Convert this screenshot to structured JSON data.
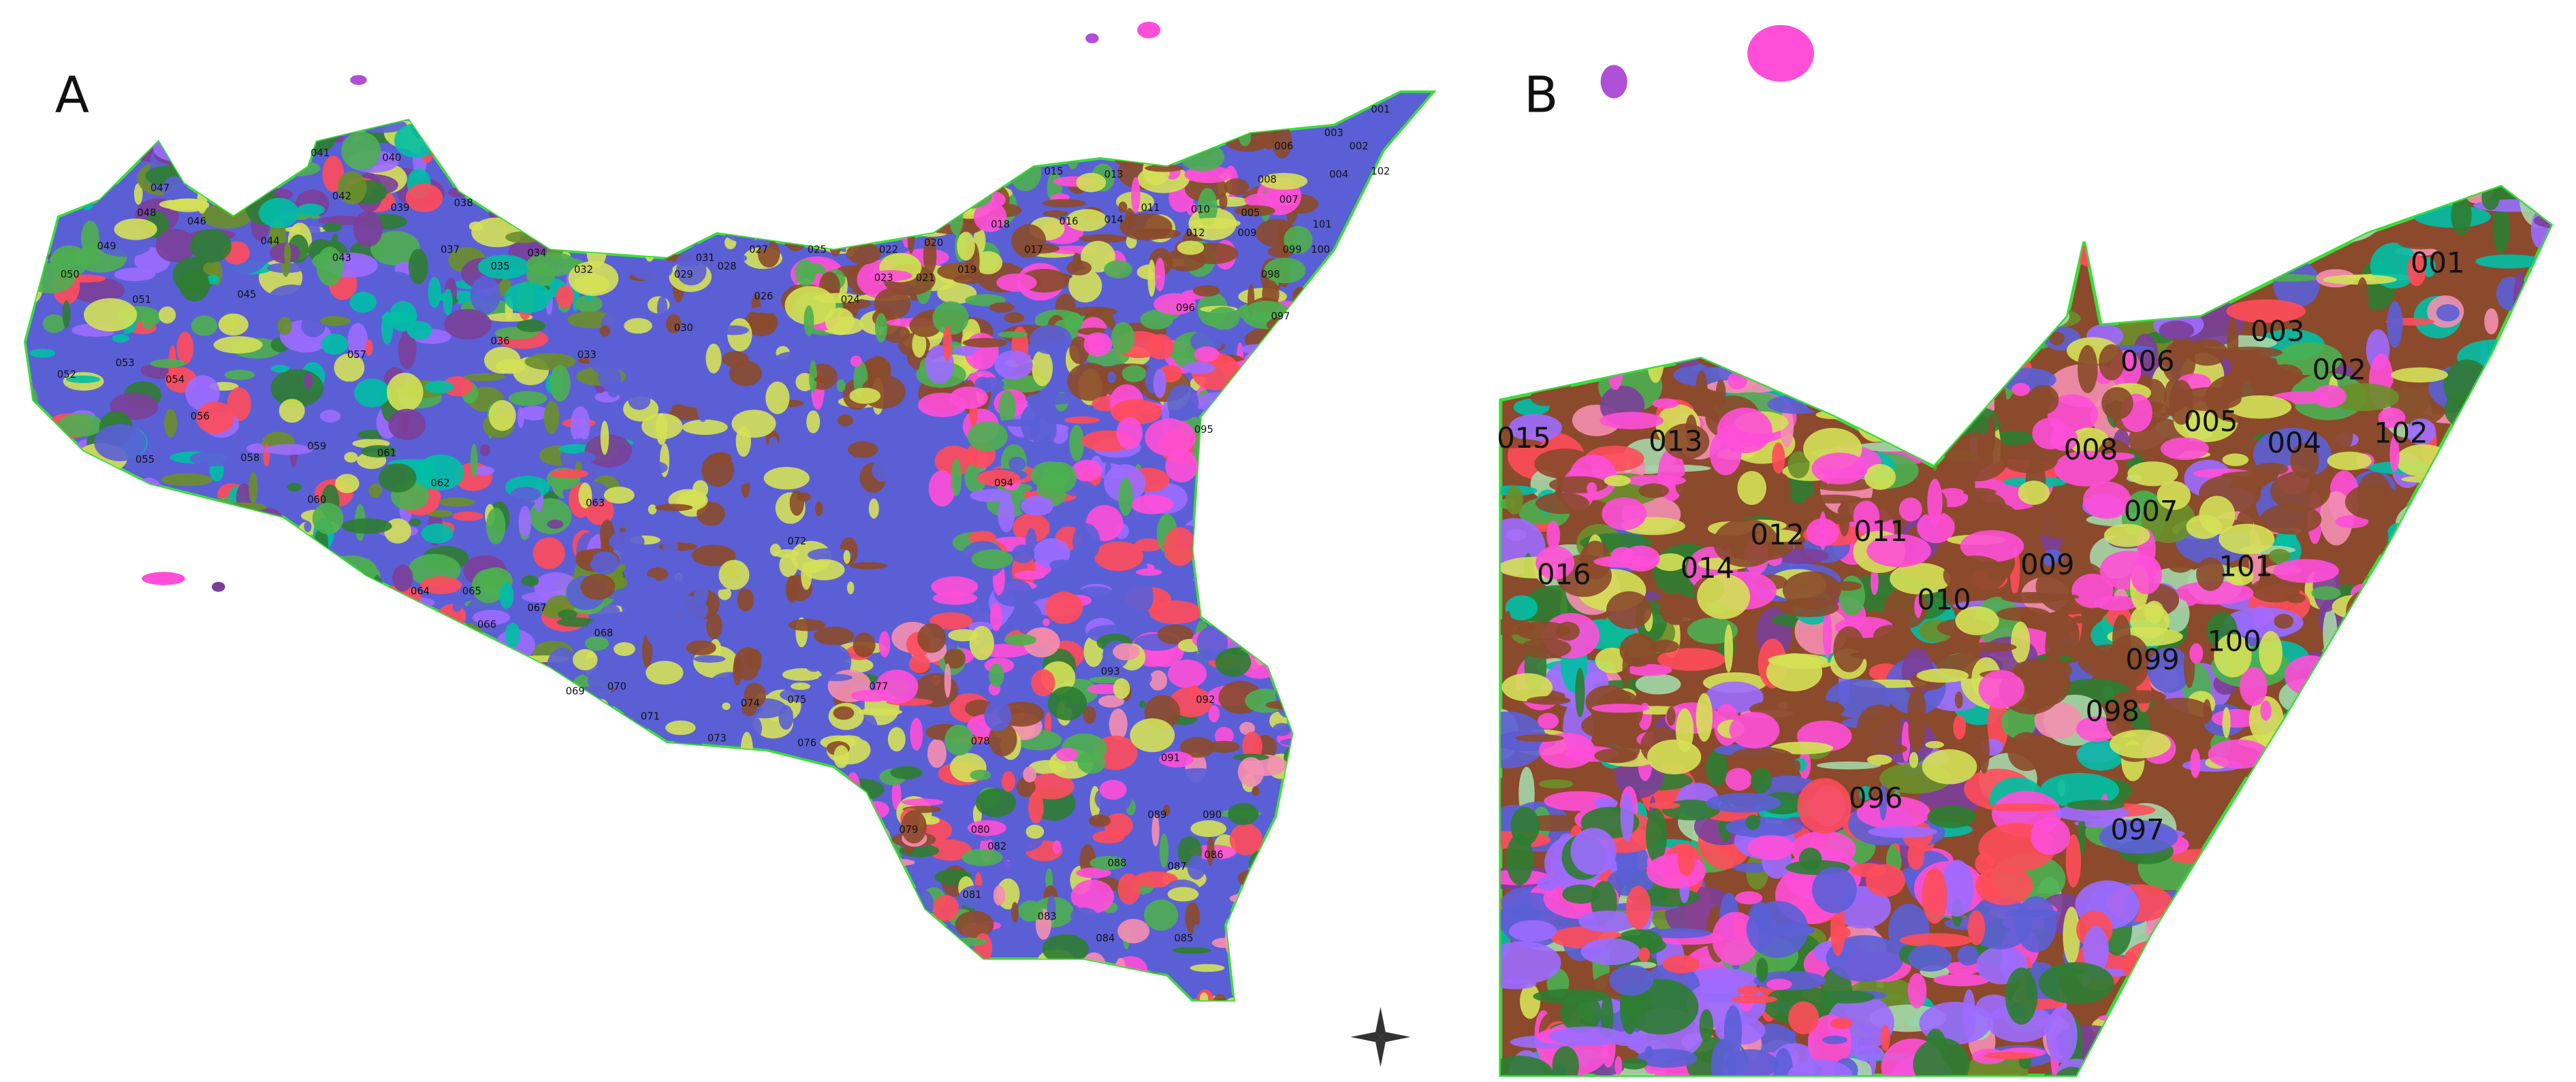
{
  "panels": [
    {
      "label": "A",
      "regions": [
        "001",
        "002",
        "003",
        "004",
        "005",
        "006",
        "007",
        "008",
        "009",
        "010",
        "011",
        "012",
        "013",
        "014",
        "015",
        "016",
        "017",
        "018",
        "019",
        "020",
        "021",
        "022",
        "023",
        "024",
        "025",
        "026",
        "027",
        "028",
        "029",
        "030",
        "031",
        "032",
        "033",
        "034",
        "035",
        "036",
        "037",
        "038",
        "039",
        "040",
        "041",
        "042",
        "043",
        "044",
        "045",
        "046",
        "047",
        "048",
        "049",
        "050",
        "051",
        "052",
        "053",
        "054",
        "055",
        "056",
        "057",
        "058",
        "059",
        "060",
        "061",
        "062",
        "063",
        "064",
        "065",
        "066",
        "067",
        "068",
        "069",
        "070",
        "071",
        "072",
        "073",
        "074",
        "075",
        "076",
        "077",
        "078",
        "079",
        "080",
        "081",
        "082",
        "083",
        "084",
        "085",
        "086",
        "087",
        "088",
        "089",
        "090",
        "091",
        "092",
        "093",
        "094",
        "095",
        "096",
        "097",
        "098",
        "099",
        "100",
        "101",
        "102"
      ]
    },
    {
      "label": "B",
      "regions": [
        "001",
        "003",
        "002",
        "006",
        "005",
        "004",
        "102",
        "008",
        "015",
        "013",
        "007",
        "012",
        "011",
        "016",
        "014",
        "009",
        "101",
        "010",
        "100",
        "099",
        "098",
        "096",
        "097"
      ]
    }
  ]
}
